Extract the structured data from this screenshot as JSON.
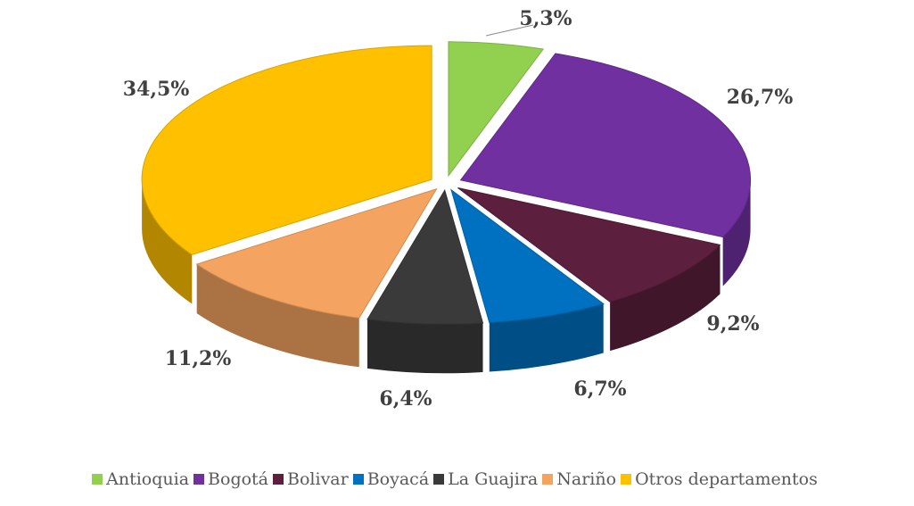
{
  "chart_data": {
    "type": "pie",
    "title": "",
    "categories": [
      "Antioquia",
      "Bogotá",
      "Bolivar",
      "Boyacá",
      "La Guajira",
      "Nariño",
      "Otros departamentos"
    ],
    "values": [
      5.3,
      26.7,
      9.2,
      6.7,
      6.4,
      11.2,
      34.5
    ],
    "labels": [
      "5,3%",
      "26,7%",
      "9,2%",
      "6,7%",
      "6,4%",
      "11,2%",
      "34,5%"
    ],
    "colors": [
      "#92D050",
      "#7030A0",
      "#5C1F3D",
      "#0070C0",
      "#3A3A3A",
      "#F4A460",
      "#FFC000"
    ],
    "style": "exploded-3d",
    "legend_position": "bottom"
  }
}
